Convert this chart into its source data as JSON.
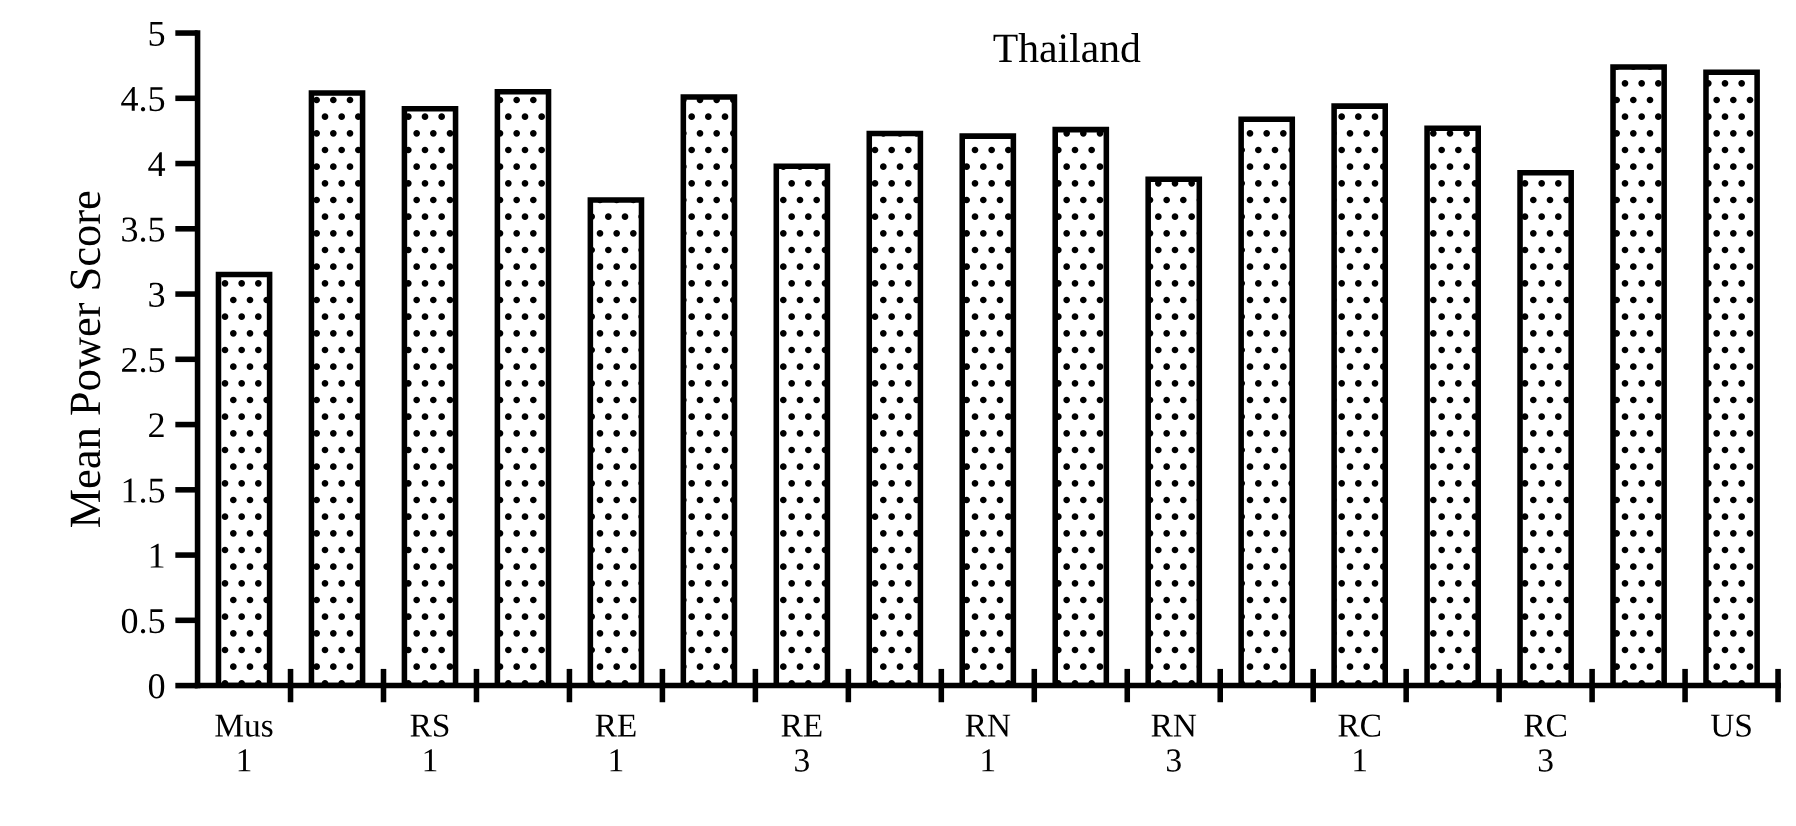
{
  "chart_data": {
    "type": "bar",
    "title": "Thailand",
    "ylabel": "Mean Power Score",
    "categories": [
      "Mus\n1",
      null,
      "RS\n1",
      null,
      "RE\n1",
      null,
      "RE\n3",
      null,
      "RN\n1",
      null,
      "RN\n3",
      null,
      "RC\n1",
      null,
      "RC\n3",
      null,
      "US"
    ],
    "values": [
      3.15,
      4.54,
      4.42,
      4.55,
      3.72,
      4.51,
      3.98,
      4.23,
      4.21,
      4.26,
      3.88,
      4.34,
      4.44,
      4.27,
      3.93,
      4.74,
      4.7
    ],
    "color": "#000000",
    "ylim": [
      0,
      5
    ],
    "yticks": [
      0,
      0.5,
      1,
      1.5,
      2,
      2.5,
      3,
      3.5,
      4,
      4.5,
      5
    ],
    "grid": false
  }
}
